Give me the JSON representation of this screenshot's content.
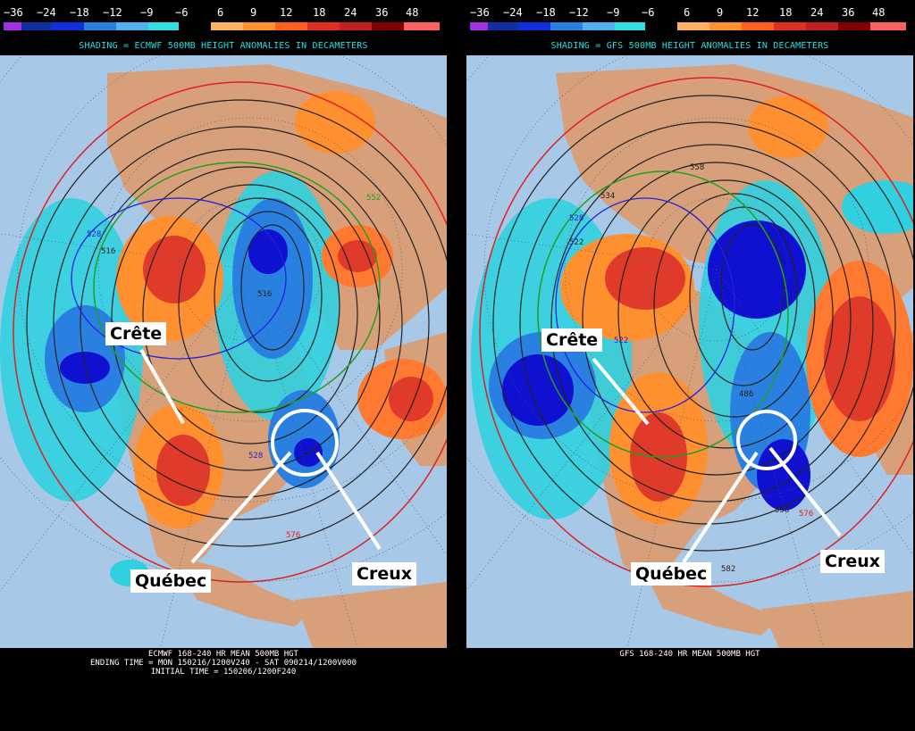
{
  "colorbar": {
    "labels": [
      "−36",
      "−24",
      "−18",
      "−12",
      "−9",
      "−6",
      "6",
      "9",
      "12",
      "18",
      "24",
      "36",
      "48"
    ],
    "colors": [
      "#a030e0",
      "#1030a0",
      "#1030e0",
      "#2a80e0",
      "#50b0f0",
      "#30e0e0",
      "#000000",
      "#ffb060",
      "#ff9030",
      "#ff6020",
      "#e03020",
      "#c02020",
      "#800000",
      "#ff6060"
    ]
  },
  "left": {
    "shade_title": "SHADING = ECMWF 500MB HEIGHT ANOMALIES IN DECAMETERS",
    "footer": [
      "ECMWF 168-240 HR MEAN 500MB HGT",
      "ENDING TIME = MON 150216/1200V240 - SAT 090214/1200V000",
      "INITIAL TIME = 150206/1200F240"
    ],
    "annotations": {
      "ridge": "Crête",
      "quebec": "Québec",
      "trough": "Creux"
    },
    "contour_labels": [
      "552",
      "528",
      "516",
      "576",
      "528",
      "516"
    ]
  },
  "right": {
    "shade_title": "SHADING = GFS 500MB HEIGHT ANOMALIES IN DECAMETERS",
    "footer": [
      "GFS 168-240 HR MEAN 500MB HGT"
    ],
    "annotations": {
      "ridge": "Crête",
      "quebec": "Québec",
      "trough": "Creux"
    },
    "contour_labels": [
      "558",
      "534",
      "528",
      "522",
      "522",
      "486",
      "558",
      "576",
      "582"
    ]
  },
  "map_colors": {
    "ocean": "#a8c8e8",
    "land": "#d8a07a",
    "trough_dark": "#1010d0",
    "trough_light": "#30d0e0",
    "ridge": "#ff7a30",
    "ridge_core": "#e03a2a"
  }
}
